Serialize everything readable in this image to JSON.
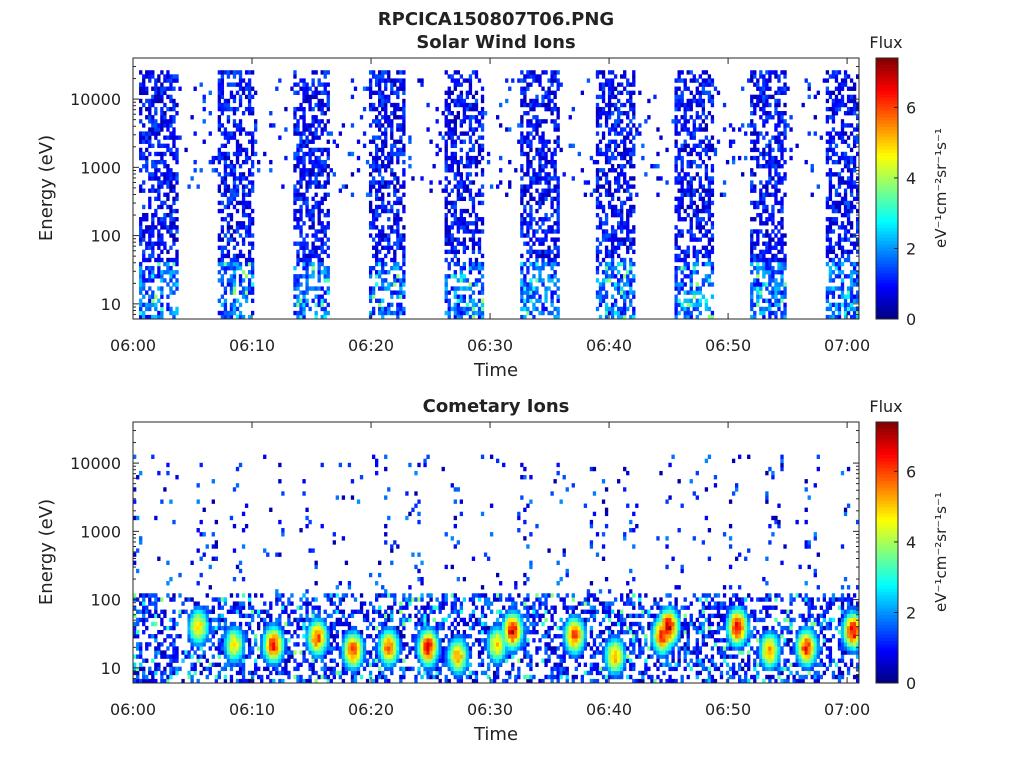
{
  "figure": {
    "title": "RPCICA150807T06.PNG"
  },
  "colormap": {
    "name": "jet",
    "stops": [
      "#00007f",
      "#0000ff",
      "#007fff",
      "#00ffff",
      "#7fff7f",
      "#ffff00",
      "#ff7f00",
      "#ff0000",
      "#7f0000"
    ]
  },
  "chart_data": [
    {
      "type": "heatmap",
      "title": "Solar Wind Ions",
      "xlabel": "Time",
      "ylabel": "Energy (eV)",
      "x_ticks": [
        "06:00",
        "06:10",
        "06:20",
        "06:30",
        "06:40",
        "06:50",
        "07:00"
      ],
      "x_range_minutes": [
        0,
        61
      ],
      "y_ticks": [
        "10",
        "100",
        "1000",
        "10000"
      ],
      "y_range": [
        6,
        40000
      ],
      "y_scale": "log",
      "colorbar": {
        "label": "Flux",
        "units_label": "eV⁻¹cm⁻²sr⁻¹s⁻¹",
        "ticks": [
          "0",
          "2",
          "4",
          "6"
        ],
        "range": [
          0,
          7.4
        ]
      },
      "scans": [
        {
          "start": 0.5,
          "end": 3.8
        },
        {
          "start": 7.0,
          "end": 10.2
        },
        {
          "start": 13.4,
          "end": 16.5
        },
        {
          "start": 19.8,
          "end": 23.0
        },
        {
          "start": 26.3,
          "end": 29.5
        },
        {
          "start": 32.6,
          "end": 35.8
        },
        {
          "start": 39.0,
          "end": 42.2
        },
        {
          "start": 45.4,
          "end": 48.7
        },
        {
          "start": 51.8,
          "end": 55.0
        },
        {
          "start": 58.2,
          "end": 61.0
        }
      ],
      "sparse_between_scans": true,
      "flux_level": "low (mostly 0-2, occasional 2-4 near 10-20 eV)"
    },
    {
      "type": "heatmap",
      "title": "Cometary Ions",
      "xlabel": "Time",
      "ylabel": "Energy (eV)",
      "x_ticks": [
        "06:00",
        "06:10",
        "06:20",
        "06:30",
        "06:40",
        "06:50",
        "07:00"
      ],
      "x_range_minutes": [
        0,
        61
      ],
      "y_ticks": [
        "10",
        "100",
        "1000",
        "10000"
      ],
      "y_range": [
        6,
        40000
      ],
      "y_scale": "log",
      "colorbar": {
        "label": "Flux",
        "units_label": "eV⁻¹cm⁻²sr⁻¹s⁻¹",
        "ticks": [
          "0",
          "2",
          "4",
          "6"
        ],
        "range": [
          0,
          7.4
        ]
      },
      "hotspots": [
        {
          "t": 5.5,
          "e": 40,
          "flux": 5.5
        },
        {
          "t": 8.5,
          "e": 22,
          "flux": 5.2
        },
        {
          "t": 11.8,
          "e": 22,
          "flux": 6.8
        },
        {
          "t": 15.5,
          "e": 28,
          "flux": 6.4
        },
        {
          "t": 18.5,
          "e": 18,
          "flux": 6.6
        },
        {
          "t": 21.5,
          "e": 20,
          "flux": 6.2
        },
        {
          "t": 24.8,
          "e": 20,
          "flux": 7.0
        },
        {
          "t": 27.3,
          "e": 15,
          "flux": 5.8
        },
        {
          "t": 30.6,
          "e": 22,
          "flux": 5.5
        },
        {
          "t": 31.9,
          "e": 35,
          "flux": 7.2
        },
        {
          "t": 37.1,
          "e": 30,
          "flux": 6.5
        },
        {
          "t": 40.5,
          "e": 15,
          "flux": 5.8
        },
        {
          "t": 44.5,
          "e": 30,
          "flux": 6.8
        },
        {
          "t": 45.0,
          "e": 40,
          "flux": 7.4
        },
        {
          "t": 50.8,
          "e": 40,
          "flux": 7.2
        },
        {
          "t": 53.5,
          "e": 18,
          "flux": 5.8
        },
        {
          "t": 56.6,
          "e": 20,
          "flux": 6.8
        },
        {
          "t": 60.5,
          "e": 35,
          "flux": 7.2
        }
      ],
      "flux_level": "high (5-7) at 10-40 eV, low (0-2) above 100 eV"
    }
  ]
}
